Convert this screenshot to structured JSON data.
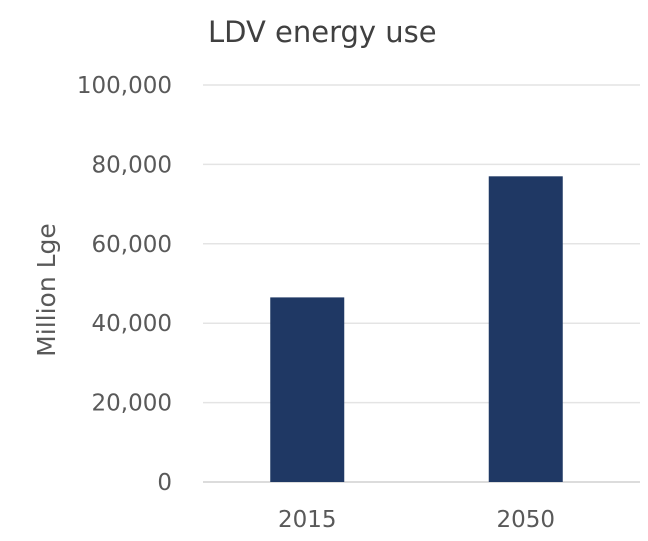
{
  "chart_data": {
    "type": "bar",
    "title": "LDV energy use",
    "ylabel": "Million Lge",
    "xlabel": "",
    "categories": [
      "2015",
      "2050"
    ],
    "values": [
      46500,
      77000
    ],
    "ylim": [
      0,
      100000
    ],
    "yticks": [
      0,
      20000,
      40000,
      60000,
      80000,
      100000
    ],
    "ytick_labels": [
      "0",
      "20,000",
      "40,000",
      "60,000",
      "80,000",
      "100,000"
    ],
    "bar_color": "#1f3864",
    "grid": true,
    "legend": "none"
  }
}
